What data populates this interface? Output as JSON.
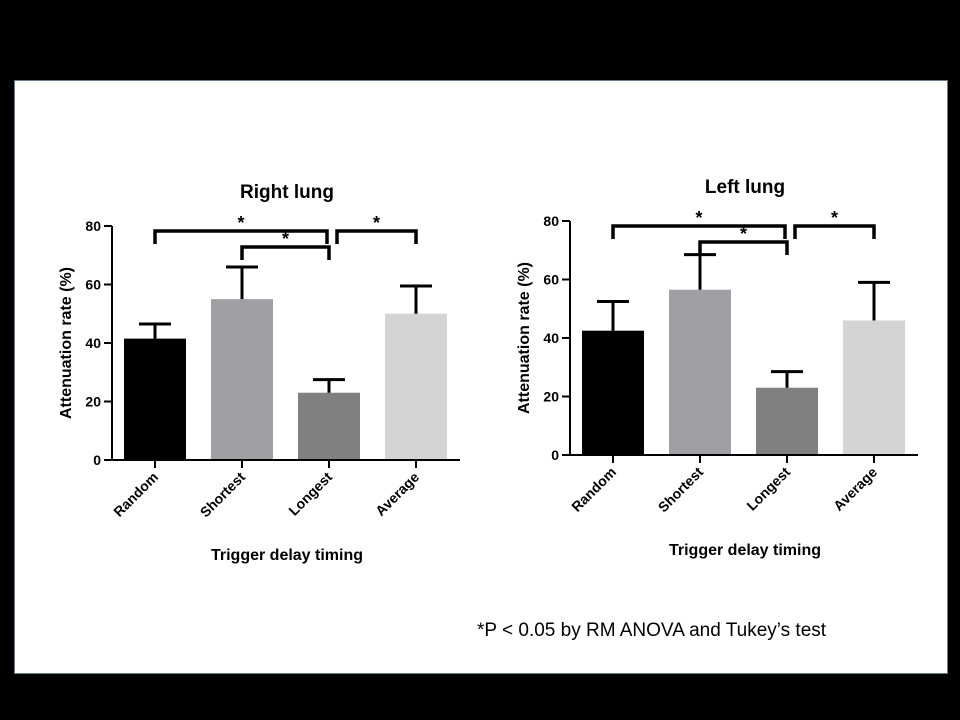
{
  "footnote": "*P < 0.05 by RM ANOVA and Tukey’s test",
  "chart_data": [
    {
      "type": "bar",
      "title": "Right lung",
      "xlabel": "Trigger delay timing",
      "ylabel": "Attenuation rate (%)",
      "ylim": [
        0,
        80
      ],
      "yticks": [
        0,
        20,
        40,
        60,
        80
      ],
      "categories": [
        "Random",
        "Shortest",
        "Longest",
        "Average"
      ],
      "values": [
        41.5,
        55,
        23,
        50
      ],
      "errors": [
        5,
        11,
        4.5,
        9.5
      ],
      "colors": [
        "#000000",
        "#a0a0a4",
        "#808080",
        "#d4d4d4"
      ],
      "significance": [
        {
          "from": 0,
          "to": 2,
          "label": "*"
        },
        {
          "from": 1,
          "to": 2,
          "label": "*"
        },
        {
          "from": 2,
          "to": 3,
          "label": "*"
        }
      ]
    },
    {
      "type": "bar",
      "title": "Left lung",
      "xlabel": "Trigger delay timing",
      "ylabel": "Attenuation rate (%)",
      "ylim": [
        0,
        80
      ],
      "yticks": [
        0,
        20,
        40,
        60,
        80
      ],
      "categories": [
        "Random",
        "Shortest",
        "Longest",
        "Average"
      ],
      "values": [
        42.5,
        56.5,
        23,
        46
      ],
      "errors": [
        10,
        12,
        5.5,
        13
      ],
      "colors": [
        "#000000",
        "#a0a0a4",
        "#808080",
        "#d4d4d4"
      ],
      "significance": [
        {
          "from": 0,
          "to": 2,
          "label": "*"
        },
        {
          "from": 1,
          "to": 2,
          "label": "*"
        },
        {
          "from": 2,
          "to": 3,
          "label": "*"
        }
      ]
    }
  ]
}
